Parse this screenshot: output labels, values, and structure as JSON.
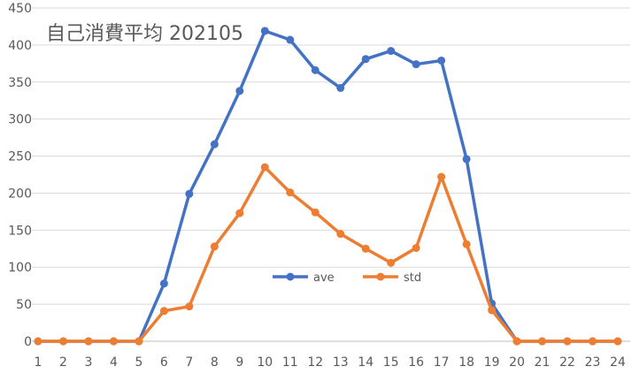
{
  "chart_data": {
    "type": "line",
    "title": "自己消費平均  202105",
    "xlabel": "",
    "ylabel": "",
    "categories": [
      "1",
      "2",
      "3",
      "4",
      "5",
      "6",
      "7",
      "8",
      "9",
      "10",
      "11",
      "12",
      "13",
      "14",
      "15",
      "16",
      "17",
      "18",
      "19",
      "20",
      "21",
      "22",
      "23",
      "24"
    ],
    "ylim": [
      0,
      450
    ],
    "yticks": [
      0,
      50,
      100,
      150,
      200,
      250,
      300,
      350,
      400,
      450
    ],
    "grid": "horizontal",
    "legend_position": "center",
    "series": [
      {
        "name": "ave",
        "color": "#4472c4",
        "values": [
          0,
          0,
          0,
          0,
          0,
          78,
          199,
          266,
          338,
          419,
          407,
          366,
          342,
          381,
          392,
          374,
          379,
          246,
          51,
          0,
          0,
          0,
          0,
          0
        ]
      },
      {
        "name": "std",
        "color": "#ed7d31",
        "values": [
          0,
          0,
          0,
          0,
          0,
          41,
          47,
          128,
          173,
          235,
          201,
          174,
          145,
          125,
          106,
          126,
          222,
          131,
          42,
          0,
          0,
          0,
          0,
          0
        ]
      }
    ]
  }
}
